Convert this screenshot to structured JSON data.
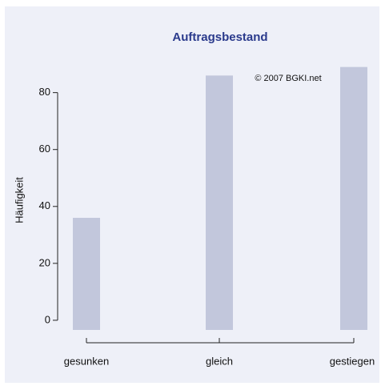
{
  "chart_data": {
    "type": "bar",
    "title": "Auftragsbestand",
    "annotation": "© 2007 BGKI.net",
    "ylabel": "Häufigkeit",
    "categories": [
      "gesunken",
      "gleich",
      "gestiegen"
    ],
    "values": [
      36,
      86,
      89
    ],
    "color": "#c2c7dc",
    "ylim": [
      -3.4,
      92
    ],
    "yticks": [
      0,
      20,
      40,
      60,
      80
    ]
  }
}
